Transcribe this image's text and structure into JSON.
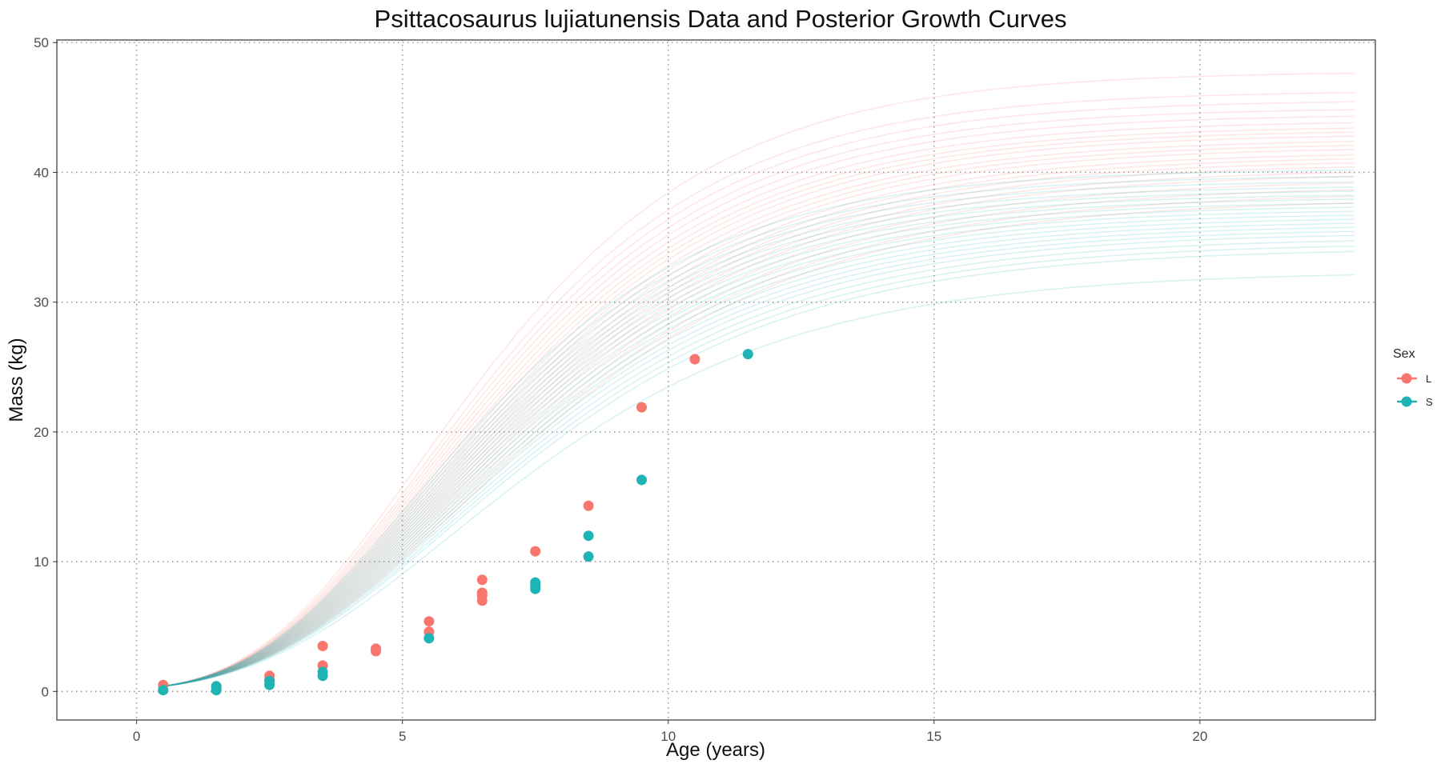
{
  "chart_data": {
    "type": "scatter",
    "title": "Psittacosaurus lujiatunensis Data and Posterior Growth Curves",
    "xlabel": "Age (years)",
    "ylabel": "Mass (kg)",
    "xlim": [
      -1.5,
      23.3
    ],
    "ylim": [
      -2.2,
      50.2
    ],
    "x_ticks": [
      0,
      5,
      10,
      15,
      20
    ],
    "y_ticks": [
      0,
      10,
      20,
      30,
      40,
      50
    ],
    "grid": "dotted major gridlines",
    "legend": {
      "title": "Sex",
      "position": "right"
    },
    "series": [
      {
        "name": "L",
        "color": "#F8766D",
        "points": [
          [
            0.5,
            0.5
          ],
          [
            1.5,
            0.3
          ],
          [
            2.5,
            1.2
          ],
          [
            2.5,
            0.9
          ],
          [
            3.5,
            3.5
          ],
          [
            3.5,
            2.0
          ],
          [
            4.5,
            3.3
          ],
          [
            4.5,
            3.1
          ],
          [
            5.5,
            5.4
          ],
          [
            5.5,
            4.6
          ],
          [
            6.5,
            8.6
          ],
          [
            6.5,
            7.6
          ],
          [
            6.5,
            7.4
          ],
          [
            6.5,
            7.0
          ],
          [
            7.5,
            10.8
          ],
          [
            8.5,
            14.3
          ],
          [
            9.5,
            21.9
          ],
          [
            10.5,
            25.6
          ]
        ],
        "curve_asymptotes": [
          38.0,
          38.5,
          39.0,
          39.5,
          40.0,
          40.3,
          40.7,
          41.0,
          41.3,
          41.6,
          42.0,
          42.3,
          42.6,
          43.0,
          43.3,
          43.6,
          44.0,
          44.5,
          45.0,
          45.6,
          46.3,
          47.8
        ]
      },
      {
        "name": "S",
        "color": "#1FB3B6",
        "points": [
          [
            0.5,
            0.1
          ],
          [
            1.5,
            0.4
          ],
          [
            1.5,
            0.1
          ],
          [
            2.5,
            0.8
          ],
          [
            2.5,
            0.5
          ],
          [
            3.5,
            1.5
          ],
          [
            3.5,
            1.2
          ],
          [
            5.5,
            4.1
          ],
          [
            7.5,
            8.4
          ],
          [
            7.5,
            8.1
          ],
          [
            7.5,
            7.9
          ],
          [
            8.5,
            12.0
          ],
          [
            8.5,
            10.4
          ],
          [
            9.5,
            16.3
          ],
          [
            11.5,
            26.0
          ]
        ],
        "curve_asymptotes": [
          32.4,
          34.2,
          34.6,
          35.0,
          35.4,
          35.7,
          36.0,
          36.3,
          36.6,
          36.9,
          37.2,
          37.5,
          37.8,
          38.1,
          38.4,
          38.7,
          39.0,
          39.4,
          39.8,
          40.3
        ]
      }
    ]
  }
}
